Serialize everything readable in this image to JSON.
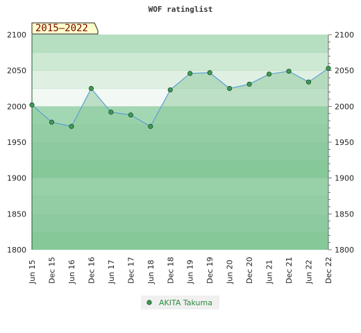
{
  "chart_data": {
    "type": "area",
    "title": "WOF ratinglist",
    "badge": "2015–2022",
    "xlabel": "",
    "ylabel": "",
    "ylim": [
      1800,
      2100
    ],
    "yticks": [
      1800,
      1850,
      1900,
      1950,
      2000,
      2050,
      2100
    ],
    "categories": [
      "Jun 15",
      "Dec 15",
      "Jun 16",
      "Dec 16",
      "Jun 17",
      "Dec 17",
      "Jun 18",
      "Dec 18",
      "Jun 19",
      "Dec 19",
      "Jun 20",
      "Dec 20",
      "Jun 21",
      "Dec 21",
      "Jun 22",
      "Dec 22"
    ],
    "series": [
      {
        "name": "AKITA Takuma",
        "values": [
          2002,
          1978,
          1972,
          2025,
          1992,
          1988,
          1972,
          2023,
          2046,
          2047,
          2025,
          2031,
          2045,
          2049,
          2034,
          2053
        ]
      }
    ],
    "grid": true,
    "legend": "bottom-center",
    "colors": {
      "line": "#5a9fd4",
      "marker": "#3e9a53",
      "fill": "#8fcb9e",
      "legend_bg": "#f0f0f0"
    }
  }
}
